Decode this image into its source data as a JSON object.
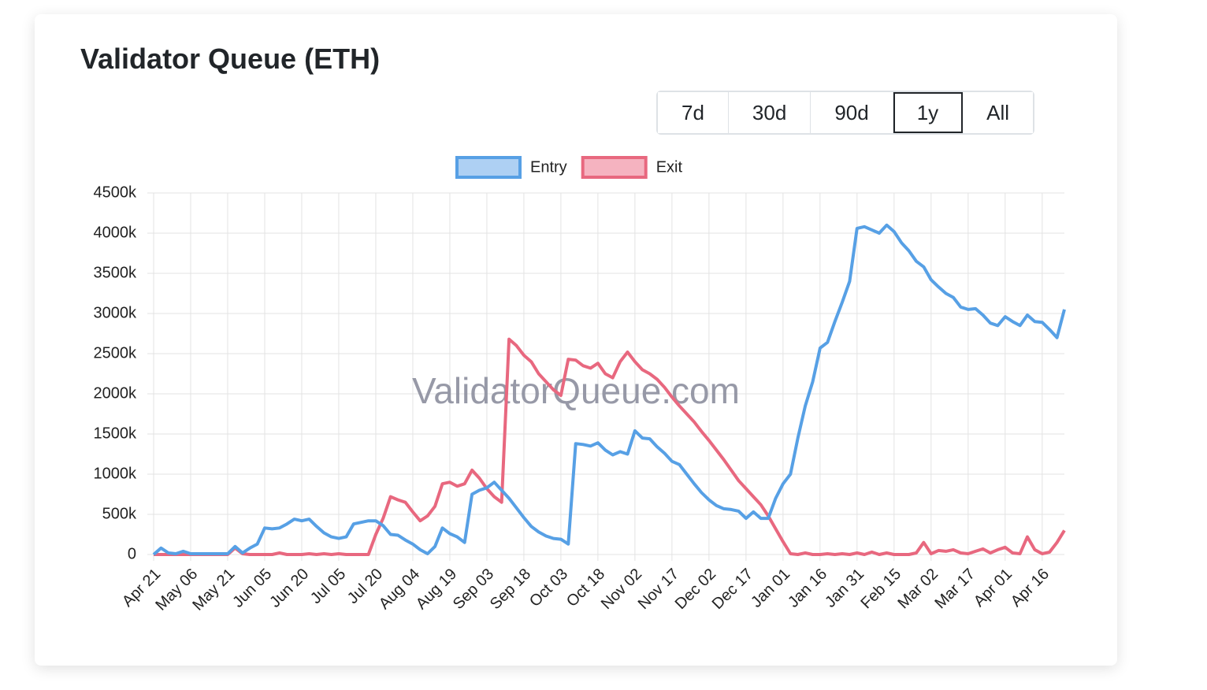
{
  "chart_data": {
    "type": "line",
    "title": "Validator Queue (ETH)",
    "watermark": "ValidatorQueue.com",
    "range_buttons": [
      "7d",
      "30d",
      "90d",
      "1y",
      "All"
    ],
    "categories": [
      "Apr 21",
      null,
      null,
      null,
      null,
      "May 06",
      null,
      null,
      null,
      null,
      "May 21",
      null,
      null,
      null,
      null,
      "Jun 05",
      null,
      null,
      null,
      null,
      "Jun 20",
      null,
      null,
      null,
      null,
      "Jul 05",
      null,
      null,
      null,
      null,
      "Jul 20",
      null,
      null,
      null,
      null,
      "Aug 04",
      null,
      null,
      null,
      null,
      "Aug 19",
      null,
      null,
      null,
      null,
      "Sep 03",
      null,
      null,
      null,
      null,
      "Sep 18",
      null,
      null,
      null,
      null,
      "Oct 03",
      null,
      null,
      null,
      null,
      "Oct 18",
      null,
      null,
      null,
      null,
      "Nov 02",
      null,
      null,
      null,
      null,
      "Nov 17",
      null,
      null,
      null,
      null,
      "Dec 02",
      null,
      null,
      null,
      null,
      "Dec 17",
      null,
      null,
      null,
      null,
      "Jan 01",
      null,
      null,
      null,
      null,
      "Jan 16",
      null,
      null,
      null,
      null,
      "Jan 31",
      null,
      null,
      null,
      null,
      "Feb 15",
      null,
      null,
      null,
      null,
      "Mar 02",
      null,
      null,
      null,
      null,
      "Mar 17",
      null,
      null,
      null,
      null,
      "Apr 01",
      null,
      null,
      null,
      null,
      "Apr 16",
      null,
      null,
      null
    ],
    "series": [
      {
        "name": "Entry",
        "color": "#57a0e5",
        "fill": "#aed0f3",
        "values": [
          0,
          80,
          20,
          10,
          40,
          10,
          10,
          10,
          10,
          10,
          10,
          100,
          20,
          80,
          130,
          330,
          320,
          330,
          380,
          440,
          420,
          440,
          350,
          270,
          220,
          200,
          220,
          380,
          400,
          420,
          420,
          360,
          250,
          240,
          180,
          130,
          60,
          10,
          100,
          330,
          260,
          220,
          150,
          750,
          800,
          830,
          900,
          800,
          700,
          580,
          460,
          350,
          280,
          230,
          200,
          190,
          130,
          1380,
          1370,
          1350,
          1390,
          1300,
          1240,
          1280,
          1250,
          1540,
          1450,
          1440,
          1340,
          1260,
          1160,
          1120,
          1000,
          880,
          770,
          680,
          610,
          570,
          560,
          540,
          450,
          530,
          450,
          450,
          700,
          880,
          1000,
          1450,
          1850,
          2150,
          2570,
          2640,
          2900,
          3140,
          3400,
          4060,
          4080,
          4040,
          4000,
          4100,
          4020,
          3880,
          3780,
          3650,
          3580,
          3420,
          3330,
          3250,
          3200,
          3080,
          3050,
          3060,
          2980,
          2880,
          2850,
          2960,
          2900,
          2850,
          2980,
          2900,
          2890,
          2800,
          2700,
          3050
        ]
      },
      {
        "name": "Exit",
        "color": "#e8687f",
        "fill": "#f5b3c0",
        "values": [
          0,
          0,
          0,
          0,
          0,
          0,
          0,
          0,
          0,
          0,
          0,
          80,
          10,
          0,
          0,
          0,
          0,
          20,
          0,
          0,
          0,
          10,
          0,
          10,
          0,
          10,
          0,
          0,
          0,
          0,
          250,
          450,
          720,
          680,
          650,
          530,
          420,
          480,
          600,
          880,
          900,
          850,
          880,
          1050,
          950,
          820,
          720,
          650,
          2680,
          2600,
          2480,
          2400,
          2250,
          2150,
          2050,
          1980,
          2430,
          2420,
          2350,
          2320,
          2380,
          2250,
          2200,
          2400,
          2520,
          2400,
          2300,
          2250,
          2180,
          2080,
          1960,
          1850,
          1750,
          1650,
          1530,
          1420,
          1300,
          1180,
          1050,
          920,
          820,
          720,
          620,
          480,
          320,
          160,
          10,
          0,
          20,
          0,
          0,
          10,
          0,
          10,
          0,
          20,
          0,
          30,
          0,
          20,
          0,
          0,
          0,
          20,
          150,
          10,
          50,
          40,
          60,
          20,
          10,
          40,
          70,
          20,
          60,
          90,
          20,
          10,
          220,
          60,
          10,
          30,
          150,
          300
        ]
      }
    ],
    "ylim": [
      0,
      4500
    ],
    "yticks": [
      0,
      {
        "value": 500,
        "label": "500k"
      },
      {
        "value": 1000,
        "label": "1000k"
      },
      {
        "value": 1500,
        "label": "1500k"
      },
      {
        "value": 2000,
        "label": "2000k"
      },
      {
        "value": 2500,
        "label": "2500k"
      },
      {
        "value": 3000,
        "label": "3000k"
      },
      {
        "value": 3500,
        "label": "3500k"
      },
      {
        "value": 4000,
        "label": "4000k"
      },
      {
        "value": 4500,
        "label": "4500k"
      }
    ],
    "grid": true,
    "legend": "top"
  }
}
